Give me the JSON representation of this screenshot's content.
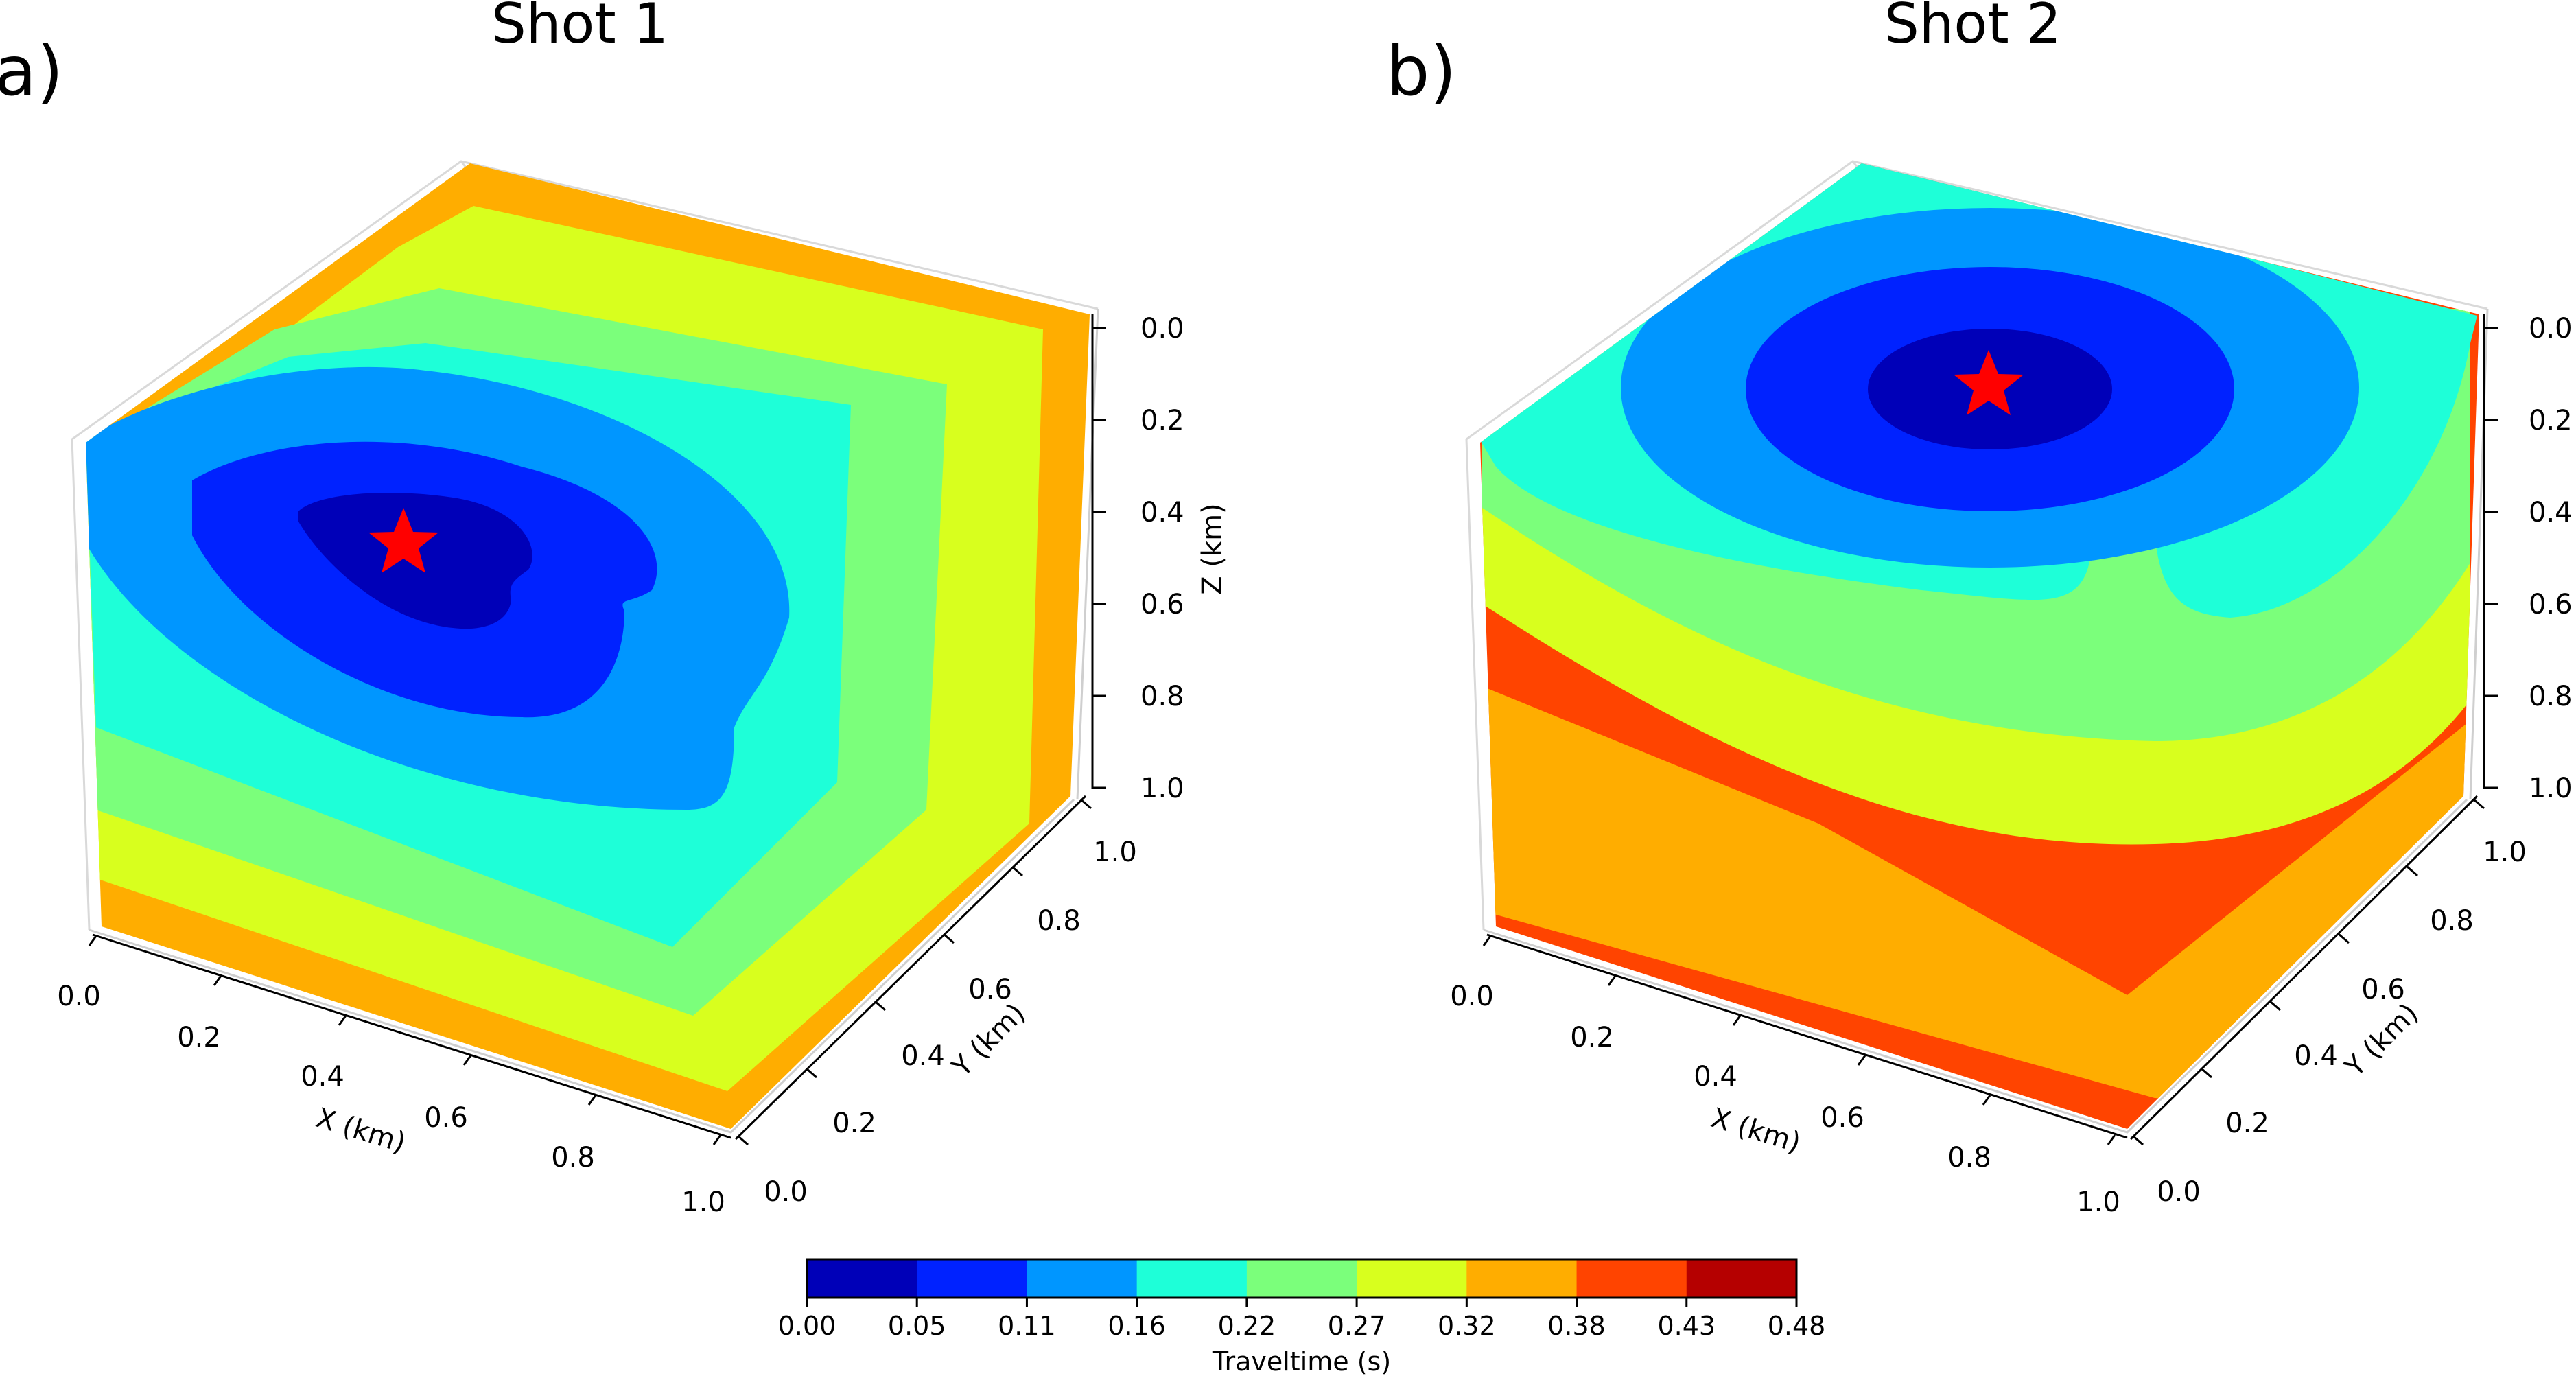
{
  "chart_data": {
    "type": "contour",
    "panels": [
      {
        "letter": "a)",
        "title": "Shot 1",
        "source": {
          "x": 0.3,
          "y": 0.6,
          "z": 0.0
        },
        "x_axis": {
          "label": "X (km)",
          "ticks": [
            "0.0",
            "0.2",
            "0.4",
            "0.6",
            "0.8",
            "1.0"
          ],
          "range": [
            0,
            1
          ]
        },
        "y_axis": {
          "label": "Y (km)",
          "ticks": [
            "0.0",
            "0.2",
            "0.4",
            "0.6",
            "0.8",
            "1.0"
          ],
          "range": [
            0,
            1
          ]
        },
        "z_axis": {
          "label": "Z (km)",
          "ticks": [
            "0.0",
            "0.2",
            "0.4",
            "0.6",
            "0.8",
            "1.0"
          ],
          "range": [
            0,
            1
          ],
          "inverted": true
        }
      },
      {
        "letter": "b)",
        "title": "Shot 2",
        "source": {
          "x": 0.5,
          "y": 0.75,
          "z": 0.0
        },
        "x_axis": {
          "label": "X (km)",
          "ticks": [
            "0.0",
            "0.2",
            "0.4",
            "0.6",
            "0.8",
            "1.0"
          ],
          "range": [
            0,
            1
          ]
        },
        "y_axis": {
          "label": "Y (km)",
          "ticks": [
            "0.0",
            "0.2",
            "0.4",
            "0.6",
            "0.8",
            "1.0"
          ],
          "range": [
            0,
            1
          ]
        },
        "z_axis": {
          "label": "Z (km)",
          "ticks": [
            "0.0",
            "0.2",
            "0.4",
            "0.6",
            "0.8",
            "1.0"
          ],
          "range": [
            0,
            1
          ],
          "inverted": true
        }
      }
    ],
    "colorbar": {
      "label": "Traveltime (s)",
      "levels": [
        "0.00",
        "0.05",
        "0.11",
        "0.16",
        "0.22",
        "0.27",
        "0.32",
        "0.38",
        "0.43",
        "0.48"
      ],
      "colors": [
        "#0000b8",
        "#0022ff",
        "#0096ff",
        "#1effd8",
        "#7bff7b",
        "#d8ff1e",
        "#ffad00",
        "#ff4400",
        "#b50000"
      ]
    },
    "source_marker": {
      "shape": "star",
      "color": "#ff0000"
    }
  }
}
